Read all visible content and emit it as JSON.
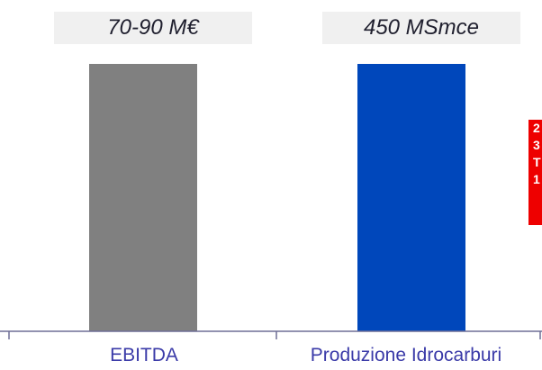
{
  "chart_data": {
    "type": "bar",
    "categories": [
      "EBITDA",
      "Produzione Idrocarburi"
    ],
    "values": [
      1,
      1
    ],
    "value_labels": [
      "70-90 M€",
      "450 MSmce"
    ],
    "colors": [
      "#808080",
      "#0047bb"
    ],
    "title": "",
    "xlabel": "",
    "ylabel": "",
    "ylim": [
      0,
      1
    ],
    "grid": false
  },
  "side_badge": {
    "lines": [
      "2",
      "3",
      "T",
      "1"
    ],
    "color": "#ee0000"
  },
  "colors": {
    "axis": "#6e6e96",
    "value_box_bg": "#f0f0f0",
    "category_text": "#3a3aa8"
  }
}
